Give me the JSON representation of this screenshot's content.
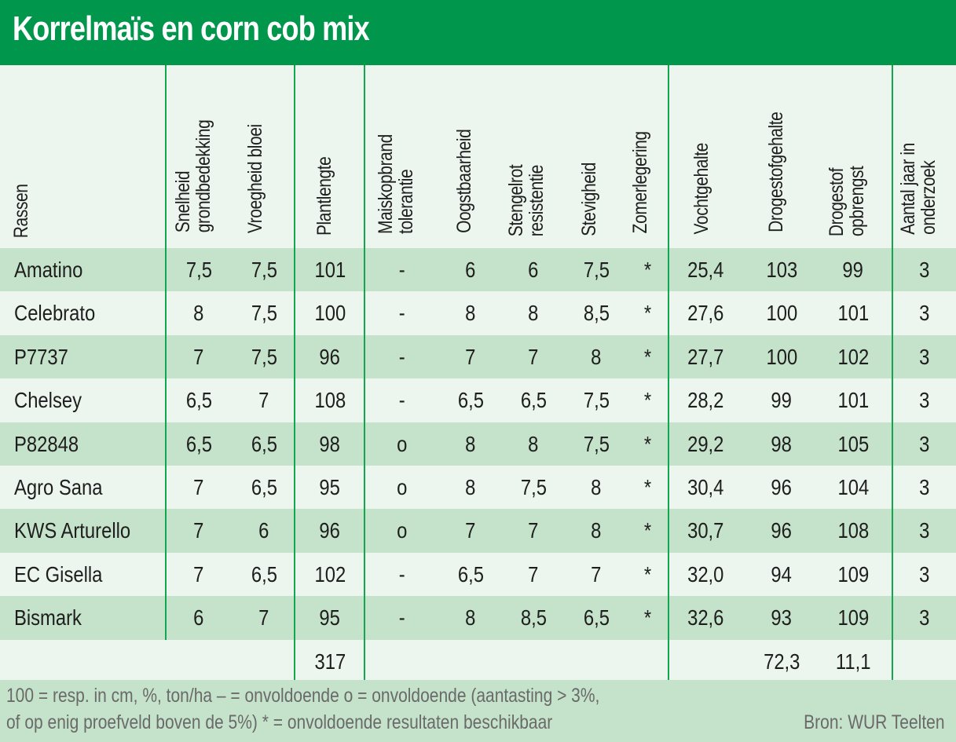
{
  "title": "Korrelmaïs en corn cob mix",
  "colors": {
    "title_bg": "#00964b",
    "row_dark": "#c5e2ca",
    "row_light": "#ecf5ee",
    "divider": "#12a650",
    "footer_text": "#6a6a6a"
  },
  "columns": [
    {
      "key": "ras",
      "label": "Rassen"
    },
    {
      "key": "snelheid",
      "label": "Snelheid\ngrondbedekking"
    },
    {
      "key": "vroegheid",
      "label": "Vroegheid bloei"
    },
    {
      "key": "plantlengte",
      "label": "Plantlengte"
    },
    {
      "key": "maiskopbrand",
      "label": "Maiskopbrand\ntolerantie"
    },
    {
      "key": "oogstbaarheid",
      "label": "Oogstbaarheid"
    },
    {
      "key": "stengelrot",
      "label": "Stengelrot\nresistentie"
    },
    {
      "key": "stevigheid",
      "label": "Stevigheid"
    },
    {
      "key": "zomerlegering",
      "label": "Zomerlegering"
    },
    {
      "key": "vochtgehalte",
      "label": "Vochtgehalte"
    },
    {
      "key": "drogestofgehalte",
      "label": "Drogestofgehalte"
    },
    {
      "key": "drogestof_opbrengst",
      "label": "Drogestof\nopbrengst"
    },
    {
      "key": "aantal_jaar",
      "label": "Aantal jaar in\nonderzoek"
    }
  ],
  "rows": [
    [
      "Amatino",
      "7,5",
      "7,5",
      "101",
      "-",
      "6",
      "6",
      "7,5",
      "*",
      "25,4",
      "103",
      "99",
      "3"
    ],
    [
      "Celebrato",
      "8",
      "7,5",
      "100",
      "-",
      "8",
      "8",
      "8,5",
      "*",
      "27,6",
      "100",
      "101",
      "3"
    ],
    [
      "P7737",
      "7",
      "7,5",
      "96",
      "-",
      "7",
      "7",
      "8",
      "*",
      "27,7",
      "100",
      "102",
      "3"
    ],
    [
      "Chelsey",
      "6,5",
      "7",
      "108",
      "-",
      "6,5",
      "6,5",
      "7,5",
      "*",
      "28,2",
      "99",
      "101",
      "3"
    ],
    [
      "P82848",
      "6,5",
      "6,5",
      "98",
      "o",
      "8",
      "8",
      "7,5",
      "*",
      "29,2",
      "98",
      "105",
      "3"
    ],
    [
      "Agro Sana",
      "7",
      "6,5",
      "95",
      "o",
      "8",
      "7,5",
      "8",
      "*",
      "30,4",
      "96",
      "104",
      "3"
    ],
    [
      "KWS Arturello",
      "7",
      "6",
      "96",
      "o",
      "7",
      "7",
      "8",
      "*",
      "30,7",
      "96",
      "108",
      "3"
    ],
    [
      "EC Gisella",
      "7",
      "6,5",
      "102",
      "-",
      "6,5",
      "7",
      "7",
      "*",
      "32,0",
      "94",
      "109",
      "3"
    ],
    [
      "Bismark",
      "6",
      "7",
      "95",
      "-",
      "8",
      "8,5",
      "6,5",
      "*",
      "32,6",
      "93",
      "109",
      "3"
    ]
  ],
  "reference_row": [
    "",
    "",
    "",
    "317",
    "",
    "",
    "",
    "",
    "",
    "",
    "72,3",
    "11,1",
    ""
  ],
  "footer": {
    "line1": "100 = resp. in cm, %, ton/ha   – = onvoldoende    o = onvoldoende (aantasting > 3%,",
    "line2": "of op enig proefveld boven de 5%)  * = onvoldoende resultaten beschikbaar",
    "source": "Bron: WUR Teelten"
  }
}
